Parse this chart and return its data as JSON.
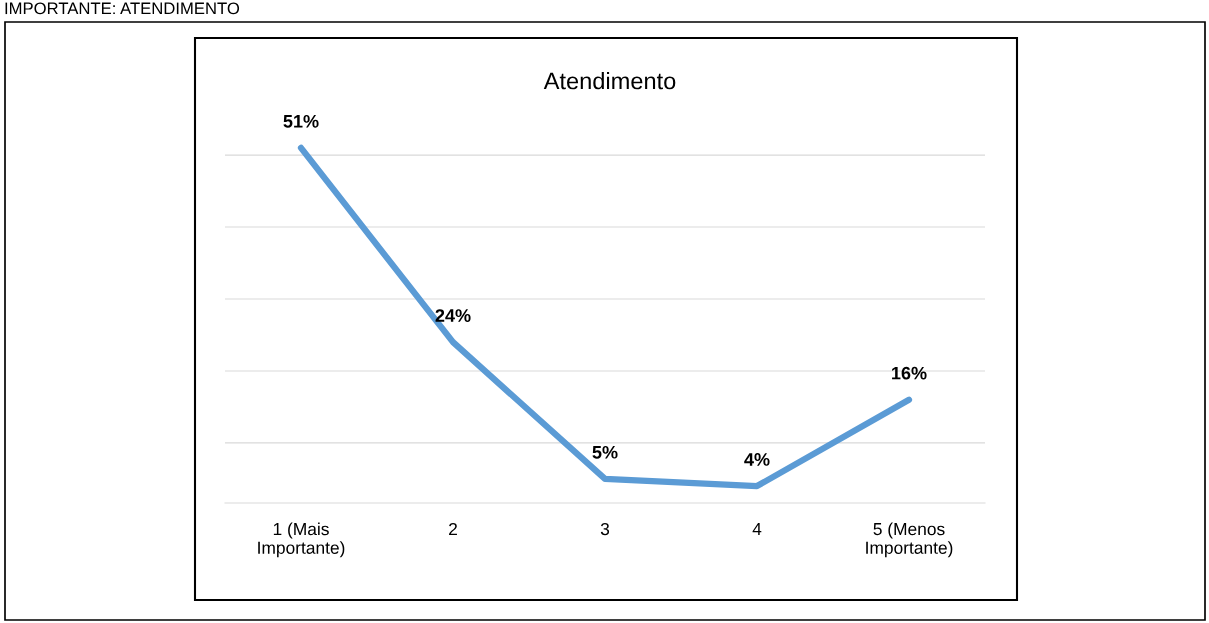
{
  "chart_data": {
    "type": "line",
    "title": "Atendimento",
    "annotations": [
      "IMPORTANTE: ATENDIMENTO"
    ],
    "categories": [
      "1 (Mais\nImportante)",
      "2",
      "3",
      "4",
      "5 (Menos\nImportante)"
    ],
    "series": [
      {
        "color": "#5b9bd5",
        "values": [
          51,
          24,
          5,
          4,
          16
        ],
        "value_labels": [
          "51%",
          "24%",
          "5%",
          "4%",
          "16%"
        ]
      }
    ],
    "grid": "y",
    "tick_labels": "x",
    "marker": "none",
    "line_style": "solid",
    "legend": false
  }
}
